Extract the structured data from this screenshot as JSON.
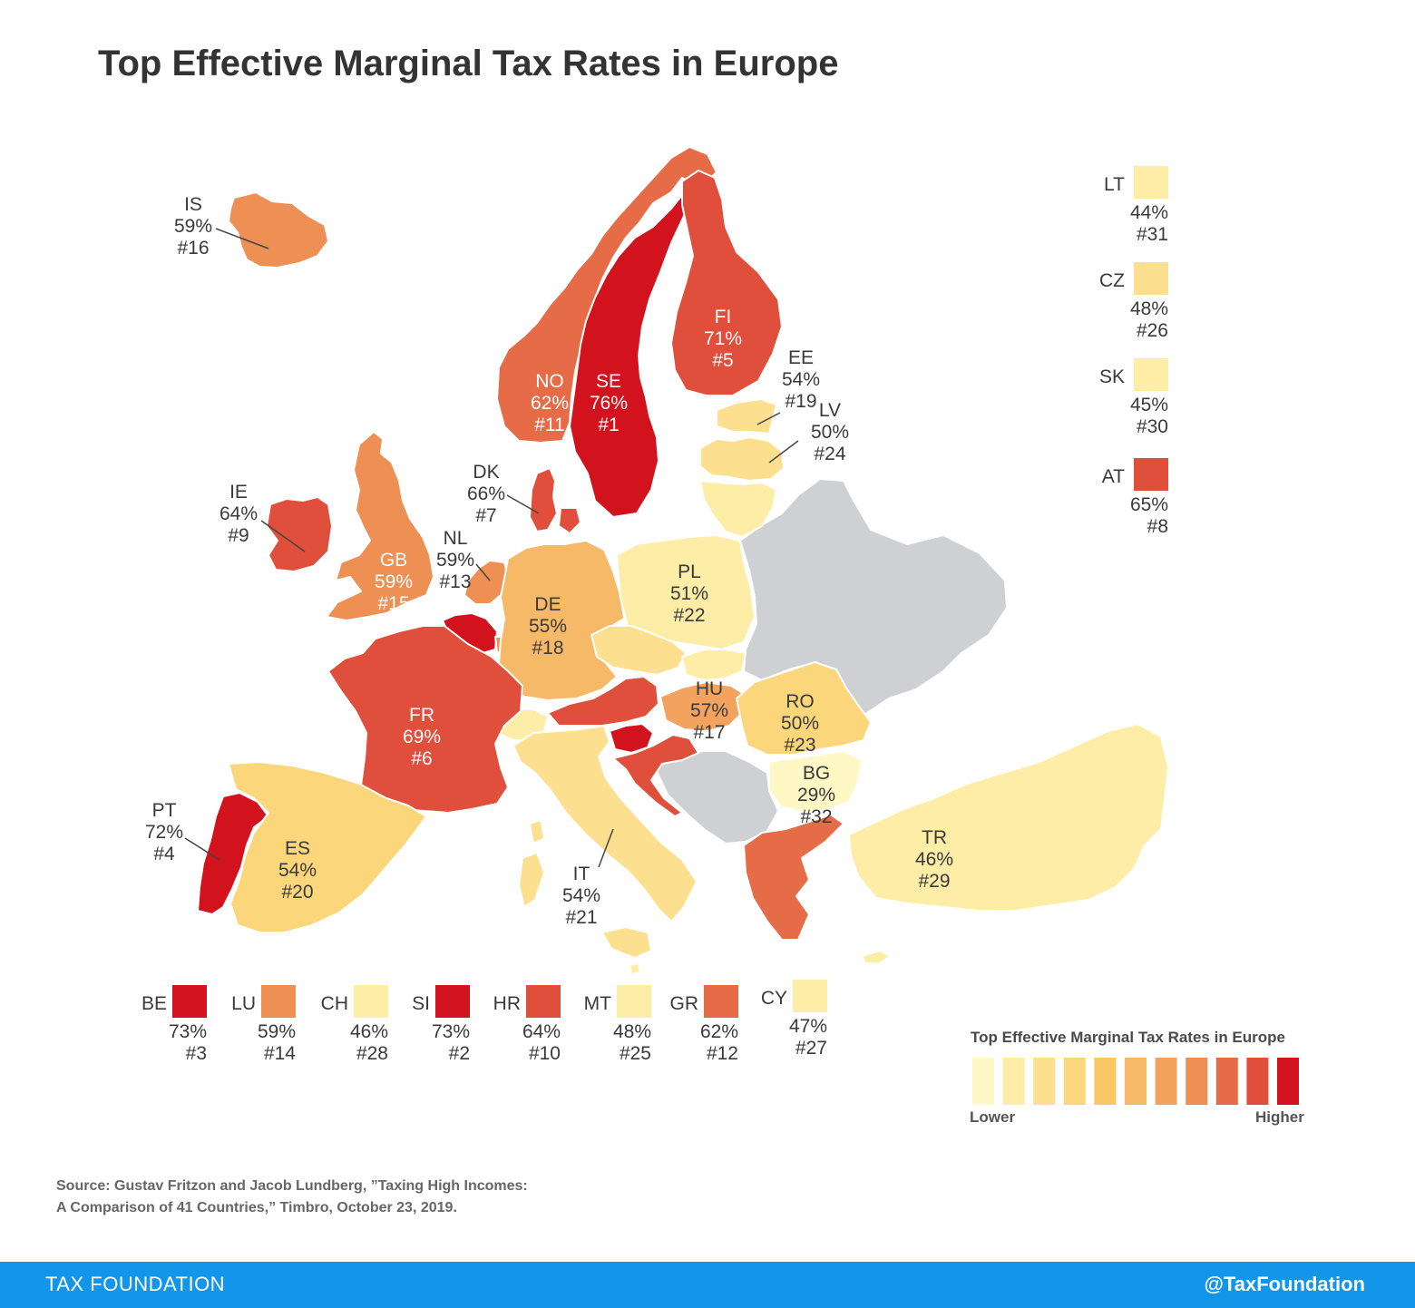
{
  "title": "Top Effective Marginal Tax Rates in Europe",
  "colors": {
    "nodata": "#cfd0d3",
    "scale": [
      "#fff8c4",
      "#fdeda6",
      "#fde08f",
      "#fcd67a",
      "#f9c765",
      "#f6b967",
      "#f3a35d",
      "#ee8f54",
      "#e66c48",
      "#e04f3c",
      "#d2121d"
    ]
  },
  "countries": [
    {
      "code": "IS",
      "rate": "59%",
      "rank": "#16",
      "level": 7
    },
    {
      "code": "NO",
      "rate": "62%",
      "rank": "#11",
      "level": 8
    },
    {
      "code": "SE",
      "rate": "76%",
      "rank": "#1",
      "level": 10
    },
    {
      "code": "FI",
      "rate": "71%",
      "rank": "#5",
      "level": 9
    },
    {
      "code": "EE",
      "rate": "54%",
      "rank": "#19",
      "level": 2
    },
    {
      "code": "LV",
      "rate": "50%",
      "rank": "#24",
      "level": 2
    },
    {
      "code": "LT",
      "rate": "44%",
      "rank": "#31",
      "level": 1
    },
    {
      "code": "DK",
      "rate": "66%",
      "rank": "#7",
      "level": 9
    },
    {
      "code": "IE",
      "rate": "64%",
      "rank": "#9",
      "level": 9
    },
    {
      "code": "GB",
      "rate": "59%",
      "rank": "#15",
      "level": 7
    },
    {
      "code": "NL",
      "rate": "59%",
      "rank": "#13",
      "level": 7
    },
    {
      "code": "BE",
      "rate": "73%",
      "rank": "#3",
      "level": 10
    },
    {
      "code": "LU",
      "rate": "59%",
      "rank": "#14",
      "level": 7
    },
    {
      "code": "DE",
      "rate": "55%",
      "rank": "#18",
      "level": 5
    },
    {
      "code": "PL",
      "rate": "51%",
      "rank": "#22",
      "level": 1
    },
    {
      "code": "CZ",
      "rate": "48%",
      "rank": "#26",
      "level": 2
    },
    {
      "code": "SK",
      "rate": "45%",
      "rank": "#30",
      "level": 1
    },
    {
      "code": "AT",
      "rate": "65%",
      "rank": "#8",
      "level": 9
    },
    {
      "code": "CH",
      "rate": "46%",
      "rank": "#28",
      "level": 1
    },
    {
      "code": "FR",
      "rate": "69%",
      "rank": "#6",
      "level": 9
    },
    {
      "code": "HU",
      "rate": "57%",
      "rank": "#17",
      "level": 6
    },
    {
      "code": "SI",
      "rate": "73%",
      "rank": "#2",
      "level": 10
    },
    {
      "code": "HR",
      "rate": "64%",
      "rank": "#10",
      "level": 9
    },
    {
      "code": "RO",
      "rate": "50%",
      "rank": "#23",
      "level": 3
    },
    {
      "code": "BG",
      "rate": "29%",
      "rank": "#32",
      "level": 0
    },
    {
      "code": "PT",
      "rate": "72%",
      "rank": "#4",
      "level": 10
    },
    {
      "code": "ES",
      "rate": "54%",
      "rank": "#20",
      "level": 3
    },
    {
      "code": "IT",
      "rate": "54%",
      "rank": "#21",
      "level": 2
    },
    {
      "code": "MT",
      "rate": "48%",
      "rank": "#25",
      "level": 1
    },
    {
      "code": "GR",
      "rate": "62%",
      "rank": "#12",
      "level": 8
    },
    {
      "code": "CY",
      "rate": "47%",
      "rank": "#27",
      "level": 1
    },
    {
      "code": "TR",
      "rate": "46%",
      "rank": "#29",
      "level": 1
    }
  ],
  "legend": {
    "title": "Top Effective Marginal Tax Rates in Europe",
    "lower": "Lower",
    "higher": "Higher"
  },
  "source": {
    "line1": "Source: Gustav Fritzon and Jacob Lundberg, ”Taxing High Incomes:",
    "line2": "A Comparison of 41 Countries,” Timbro, October 23, 2019."
  },
  "footer": {
    "brand": "TAX FOUNDATION",
    "handle": "@TaxFoundation"
  }
}
